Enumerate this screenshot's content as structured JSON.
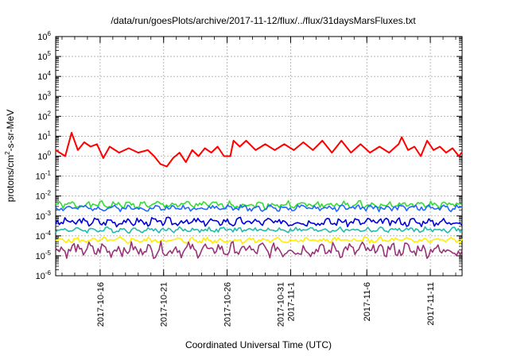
{
  "chart_data": {
    "type": "line",
    "title": "/data/run/goesPlots/archive/2017-11-12/flux/../flux/31daysMarsFluxes.txt",
    "xlabel": "Coordinated Universal Time (UTC)",
    "ylabel": {
      "base": "protons/cm",
      "sup": "2",
      "rest": "-s-sr-MeV"
    },
    "yscale": "log",
    "ylim": [
      1e-06,
      1000000.0
    ],
    "xlim": [
      "2017-10-12T12:00",
      "2017-11-13T12:00"
    ],
    "grid": true,
    "y_ticks": [
      {
        "value": 1e-06,
        "base": "10",
        "exp": "-6"
      },
      {
        "value": 1e-05,
        "base": "10",
        "exp": "-5"
      },
      {
        "value": 0.0001,
        "base": "10",
        "exp": "-4"
      },
      {
        "value": 0.001,
        "base": "10",
        "exp": "-3"
      },
      {
        "value": 0.01,
        "base": "10",
        "exp": "-2"
      },
      {
        "value": 0.1,
        "base": "10",
        "exp": "-1"
      },
      {
        "value": 1,
        "base": "10",
        "exp": "0"
      },
      {
        "value": 10,
        "base": "10",
        "exp": "1"
      },
      {
        "value": 100,
        "base": "10",
        "exp": "2"
      },
      {
        "value": 1000,
        "base": "10",
        "exp": "3"
      },
      {
        "value": 10000,
        "base": "10",
        "exp": "4"
      },
      {
        "value": 100000,
        "base": "10",
        "exp": "5"
      },
      {
        "value": 1000000,
        "base": "10",
        "exp": "6"
      }
    ],
    "x_ticks": [
      {
        "date": "2017-10-16",
        "lines": [
          "2017-10-16"
        ]
      },
      {
        "date": "2017-10-21",
        "lines": [
          "2017-10-21"
        ]
      },
      {
        "date": "2017-10-26",
        "lines": [
          "2017-10-26"
        ]
      },
      {
        "date": "2017-10-31",
        "lines": [
          "2017-10-31",
          "2017-11-1"
        ]
      },
      {
        "date": "2017-11-06",
        "lines": [
          "2017-11-6"
        ]
      },
      {
        "date": "2017-11-11",
        "lines": [
          "2017-11-11"
        ]
      }
    ],
    "series": [
      {
        "color": "#ff0000",
        "points": [
          [
            "2017-10-12T12:00",
            2.0
          ],
          [
            "2017-10-13T06:00",
            1.0
          ],
          [
            "2017-10-13T18:00",
            15.0
          ],
          [
            "2017-10-14T06:00",
            2.0
          ],
          [
            "2017-10-14T18:00",
            5.0
          ],
          [
            "2017-10-15T06:00",
            3.0
          ],
          [
            "2017-10-15T18:00",
            4.0
          ],
          [
            "2017-10-16T06:00",
            0.8
          ],
          [
            "2017-10-16T18:00",
            3.0
          ],
          [
            "2017-10-17T12:00",
            1.5
          ],
          [
            "2017-10-18T06:00",
            2.5
          ],
          [
            "2017-10-19T00:00",
            1.5
          ],
          [
            "2017-10-19T18:00",
            2.0
          ],
          [
            "2017-10-20T06:00",
            1.0
          ],
          [
            "2017-10-20T18:00",
            0.4
          ],
          [
            "2017-10-21T06:00",
            0.3
          ],
          [
            "2017-10-21T18:00",
            0.8
          ],
          [
            "2017-10-22T06:00",
            1.5
          ],
          [
            "2017-10-22T18:00",
            0.5
          ],
          [
            "2017-10-23T06:00",
            2.0
          ],
          [
            "2017-10-23T18:00",
            1.0
          ],
          [
            "2017-10-24T06:00",
            2.5
          ],
          [
            "2017-10-24T18:00",
            1.5
          ],
          [
            "2017-10-25T06:00",
            3.0
          ],
          [
            "2017-10-25T18:00",
            1.0
          ],
          [
            "2017-10-26T06:00",
            1.0
          ],
          [
            "2017-10-26T12:00",
            6.0
          ],
          [
            "2017-10-27T00:00",
            3.0
          ],
          [
            "2017-10-27T12:00",
            6.0
          ],
          [
            "2017-10-28T06:00",
            2.0
          ],
          [
            "2017-10-29T00:00",
            4.0
          ],
          [
            "2017-10-29T18:00",
            2.0
          ],
          [
            "2017-10-30T12:00",
            4.0
          ],
          [
            "2017-10-31T06:00",
            2.0
          ],
          [
            "2017-11-01T00:00",
            5.0
          ],
          [
            "2017-11-01T18:00",
            2.0
          ],
          [
            "2017-11-02T12:00",
            6.0
          ],
          [
            "2017-11-03T06:00",
            1.5
          ],
          [
            "2017-11-04T00:00",
            6.0
          ],
          [
            "2017-11-04T18:00",
            1.5
          ],
          [
            "2017-11-05T12:00",
            4.0
          ],
          [
            "2017-11-06T06:00",
            1.5
          ],
          [
            "2017-11-07T00:00",
            3.0
          ],
          [
            "2017-11-07T18:00",
            1.5
          ],
          [
            "2017-11-08T12:00",
            4.0
          ],
          [
            "2017-11-08T18:00",
            9.0
          ],
          [
            "2017-11-09T06:00",
            2.0
          ],
          [
            "2017-11-09T18:00",
            3.0
          ],
          [
            "2017-11-10T06:00",
            1.0
          ],
          [
            "2017-11-10T18:00",
            6.0
          ],
          [
            "2017-11-11T06:00",
            2.0
          ],
          [
            "2017-11-11T18:00",
            3.0
          ],
          [
            "2017-11-12T06:00",
            1.5
          ],
          [
            "2017-11-12T18:00",
            2.5
          ],
          [
            "2017-11-13T06:00",
            1.0
          ],
          [
            "2017-11-13T12:00",
            1.6
          ]
        ]
      },
      {
        "color": "#33dd33",
        "mid": 0.0036,
        "amp": 0.3,
        "seed": 1
      },
      {
        "color": "#2266ff",
        "mid": 0.0025,
        "amp": 0.25,
        "seed": 2
      },
      {
        "color": "#0000dd",
        "mid": 0.0005,
        "amp": 0.35,
        "seed": 3
      },
      {
        "color": "#22bbaa",
        "mid": 0.0002,
        "amp": 0.22,
        "seed": 4
      },
      {
        "color": "#ffee00",
        "mid": 6e-05,
        "amp": 0.25,
        "seed": 5
      },
      {
        "color": "#993377",
        "mid": 2e-05,
        "amp": 0.6,
        "seed": 6
      }
    ]
  }
}
